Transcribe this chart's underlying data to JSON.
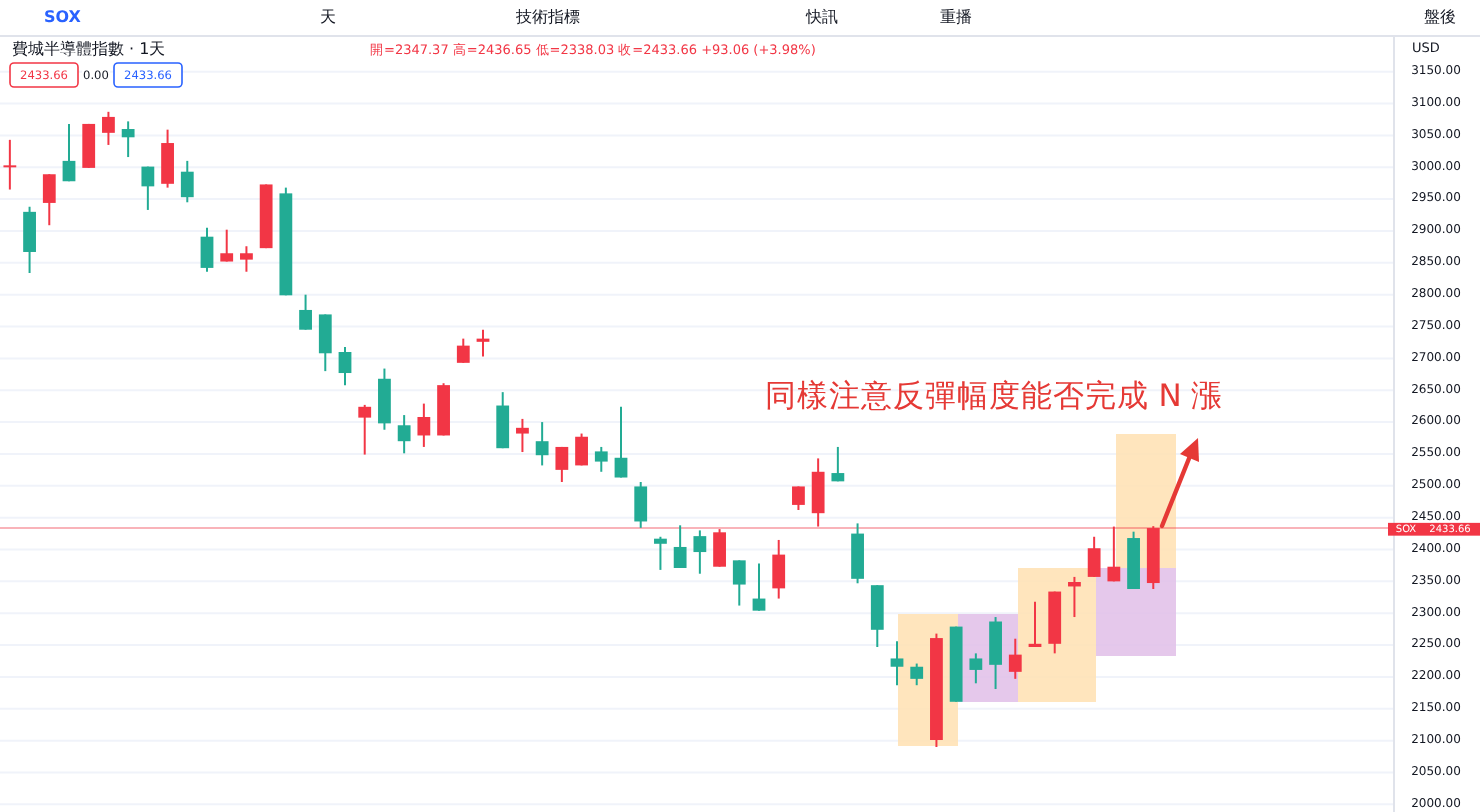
{
  "chart_data": {
    "type": "candlestick",
    "title": "費城半導體指數 · 1天",
    "subtitle": "開=2347.37 高=2436.65 低=2338.03 收=2433.66 +93.06 (+3.98%)",
    "annotations": [
      "SOX",
      "天",
      "技術指標",
      "快訊",
      "重播",
      "盤後",
      "2433.66",
      "0.00",
      "2433.66",
      "USD",
      "同樣注意反彈幅度能否完成 N 漲"
    ],
    "categories": [
      null,
      null,
      null,
      null,
      null,
      null,
      null,
      null,
      null,
      null,
      null,
      null,
      null,
      null,
      null,
      null,
      null,
      null,
      null,
      null,
      null,
      null,
      null,
      null,
      null,
      null,
      null,
      null,
      null,
      null,
      null,
      null,
      null,
      null,
      null,
      null,
      null,
      null,
      null,
      null,
      null,
      null,
      null,
      null,
      null,
      null,
      null,
      null,
      null,
      null,
      null,
      null,
      null,
      null,
      null,
      null,
      null,
      null,
      null,
      null,
      null,
      null,
      null,
      null,
      null,
      null,
      null,
      null,
      null,
      null
    ],
    "ohlc": [
      [
        3003,
        3043,
        2965,
        3003
      ],
      [
        2930,
        2938,
        2834,
        2867
      ],
      [
        2944,
        2989,
        2909,
        2989
      ],
      [
        3010,
        3068,
        2978,
        2978
      ],
      [
        2999,
        3068,
        2999,
        3068
      ],
      [
        3054,
        3087,
        3035,
        3079
      ],
      [
        3060,
        3072,
        3016,
        3047
      ],
      [
        3001,
        3001,
        2933,
        2970
      ],
      [
        2974,
        3059,
        2968,
        3038
      ],
      [
        2993,
        3010,
        2945,
        2953
      ],
      [
        2891,
        2905,
        2836,
        2842
      ],
      [
        2852,
        2902,
        2852,
        2865
      ],
      [
        2855,
        2876,
        2836,
        2865
      ],
      [
        2873,
        2973,
        2873,
        2973
      ],
      [
        2959,
        2968,
        2799,
        2799
      ],
      [
        2776,
        2800,
        2745,
        2745
      ],
      [
        2769,
        2769,
        2680,
        2708
      ],
      [
        2710,
        2718,
        2658,
        2677
      ],
      [
        2607,
        2627,
        2549,
        2624
      ],
      [
        2668,
        2684,
        2588,
        2598
      ],
      [
        2595,
        2611,
        2551,
        2570
      ],
      [
        2579,
        2629,
        2561,
        2608
      ],
      [
        2579,
        2661,
        2579,
        2658
      ],
      [
        2693,
        2731,
        2693,
        2720
      ],
      [
        2726,
        2745,
        2703,
        2731
      ],
      [
        2626,
        2647,
        2559,
        2559
      ],
      [
        2582,
        2605,
        2553,
        2591
      ],
      [
        2570,
        2600,
        2532,
        2548
      ],
      [
        2525,
        2561,
        2506,
        2561
      ],
      [
        2532,
        2582,
        2532,
        2577
      ],
      [
        2554,
        2561,
        2522,
        2538
      ],
      [
        2544,
        2624,
        2513,
        2513
      ],
      [
        2499,
        2506,
        2434,
        2444
      ],
      [
        2417,
        2420,
        2368,
        2409
      ],
      [
        2404,
        2438,
        2371,
        2371
      ],
      [
        2421,
        2430,
        2362,
        2396
      ],
      [
        2373,
        2432,
        2373,
        2427
      ],
      [
        2383,
        2383,
        2312,
        2345
      ],
      [
        2323,
        2378,
        2304,
        2304
      ],
      [
        2339,
        2415,
        2323,
        2392
      ],
      [
        2470,
        2499,
        2462,
        2499
      ],
      [
        2457,
        2543,
        2436,
        2522
      ],
      [
        2520,
        2561,
        2507,
        2507
      ],
      [
        2425,
        2441,
        2347,
        2354
      ],
      [
        2344,
        2344,
        2247,
        2274
      ],
      [
        2229,
        2256,
        2187,
        2216
      ],
      [
        2216,
        2221,
        2187,
        2197
      ],
      [
        2101,
        2268,
        2090,
        2261
      ],
      [
        2279,
        2279,
        2161,
        2161
      ],
      [
        2229,
        2237,
        2190,
        2211
      ],
      [
        2287,
        2294,
        2181,
        2219
      ],
      [
        2208,
        2260,
        2197,
        2235
      ],
      [
        2247,
        2318,
        2247,
        2252
      ],
      [
        2252,
        2334,
        2237,
        2334
      ],
      [
        2342,
        2357,
        2294,
        2349
      ],
      [
        2357,
        2420,
        2357,
        2402
      ],
      [
        2350,
        2436,
        2350,
        2373
      ],
      [
        2418,
        2428,
        2338,
        2338
      ],
      [
        2347.37,
        2436.65,
        2338.03,
        2433.66
      ],
      null,
      null,
      null,
      null,
      null,
      null,
      null,
      null,
      null,
      null,
      null
    ],
    "colors": [
      "#f23645",
      "#22ab94",
      "#f23645",
      "#22ab94",
      "#f23645",
      "#f23645",
      "#22ab94",
      "#22ab94",
      "#f23645",
      "#22ab94",
      "#22ab94",
      "#f23645",
      "#f23645",
      "#f23645",
      "#22ab94",
      "#22ab94",
      "#22ab94",
      "#22ab94",
      "#f23645",
      "#22ab94",
      "#22ab94",
      "#f23645",
      "#f23645",
      "#f23645",
      "#f23645",
      "#22ab94",
      "#f23645",
      "#22ab94",
      "#f23645",
      "#f23645",
      "#22ab94",
      "#22ab94",
      "#22ab94",
      "#22ab94",
      "#22ab94",
      "#22ab94",
      "#f23645",
      "#22ab94",
      "#22ab94",
      "#f23645",
      "#f23645",
      "#f23645",
      "#22ab94",
      "#22ab94",
      "#22ab94",
      "#22ab94",
      "#22ab94",
      "#f23645",
      "#22ab94",
      "#22ab94",
      "#22ab94",
      "#f23645",
      "#f23645",
      "#f23645",
      "#f23645",
      "#f23645",
      "#f23645",
      "#22ab94",
      "#f23645",
      null,
      null,
      null,
      null,
      null,
      null,
      null,
      null,
      null,
      null,
      null
    ],
    "ylim": [
      1988,
      3206
    ],
    "yticks": [
      {
        "value": 2000,
        "label": "2000.00"
      },
      {
        "value": 2050,
        "label": "2050.00"
      },
      {
        "value": 2100,
        "label": "2100.00"
      },
      {
        "value": 2150,
        "label": "2150.00"
      },
      {
        "value": 2200,
        "label": "2200.00"
      },
      {
        "value": 2250,
        "label": "2250.00"
      },
      {
        "value": 2300,
        "label": "2300.00"
      },
      {
        "value": 2350,
        "label": "2350.00"
      },
      {
        "value": 2400,
        "label": "2400.00"
      },
      {
        "value": 2450,
        "label": "2450.00"
      },
      {
        "value": 2500,
        "label": "2500.00"
      },
      {
        "value": 2550,
        "label": "2550.00"
      },
      {
        "value": 2600,
        "label": "2600.00"
      },
      {
        "value": 2650,
        "label": "2650.00"
      },
      {
        "value": 2700,
        "label": "2700.00"
      },
      {
        "value": 2750,
        "label": "2750.00"
      },
      {
        "value": 2800,
        "label": "2800.00"
      },
      {
        "value": 2850,
        "label": "2850.00"
      },
      {
        "value": 2900,
        "label": "2900.00"
      },
      {
        "value": 2950,
        "label": "2950.00"
      },
      {
        "value": 3000,
        "label": "3000.00"
      },
      {
        "value": 3050,
        "label": "3050.00"
      },
      {
        "value": 3100,
        "label": "3100.00"
      },
      {
        "value": 3150,
        "label": "3150.00"
      }
    ],
    "grid": "y",
    "ref_lines": [
      {
        "axis": "y",
        "value": 2433.66,
        "label": "SOX",
        "color": "#f23645"
      }
    ]
  }
}
